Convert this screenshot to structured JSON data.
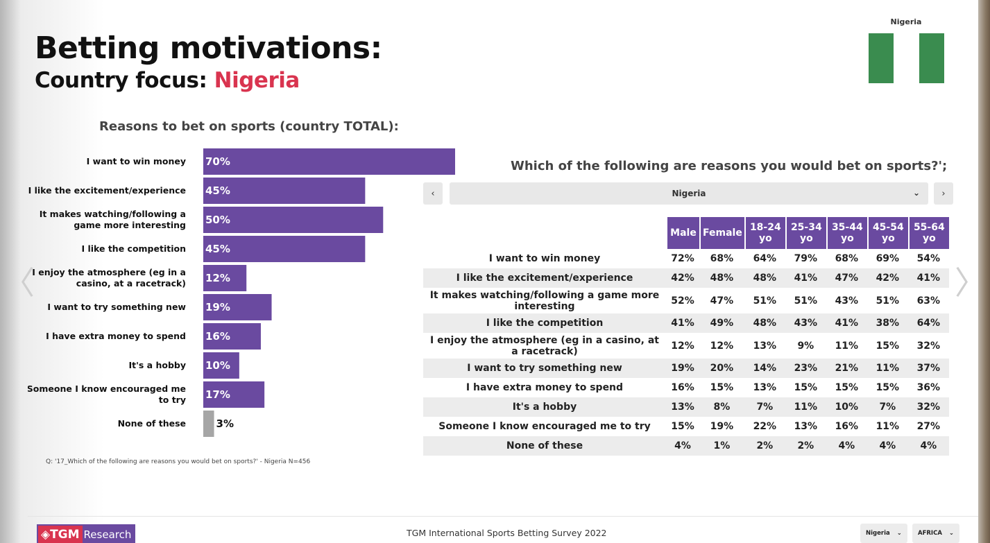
{
  "header": {
    "title": "Betting motivations:",
    "subtitle_prefix": "Country focus: ",
    "subtitle_country": "Nigeria",
    "flag_label": "Nigeria"
  },
  "colors": {
    "purple": "#6a4aa0",
    "gray_bar": "#a6a6a6",
    "accent": "#d9344f",
    "flag_green": "#3a8c4f"
  },
  "chart_data": [
    {
      "type": "bar",
      "orientation": "horizontal",
      "title": "Reasons to bet on sports (country TOTAL):",
      "categories": [
        [
          "I want to win money"
        ],
        [
          "I like the excitement/experience"
        ],
        [
          "It makes watching/following a",
          "game more interesting"
        ],
        [
          "I like the competition"
        ],
        [
          "I enjoy the atmosphere (eg in a",
          "casino, at a racetrack)"
        ],
        [
          "I want to try something new"
        ],
        [
          "I have extra money to spend"
        ],
        [
          "It's a hobby"
        ],
        [
          "Someone I know encouraged me",
          "to try"
        ],
        [
          "None of these"
        ]
      ],
      "values": [
        70,
        45,
        50,
        45,
        12,
        19,
        16,
        10,
        17,
        3
      ],
      "value_labels": [
        "70%",
        "45%",
        "50%",
        "45%",
        "12%",
        "19%",
        "16%",
        "10%",
        "17%",
        "3%"
      ],
      "bar_colors": [
        "#6a4aa0",
        "#6a4aa0",
        "#6a4aa0",
        "#6a4aa0",
        "#6a4aa0",
        "#6a4aa0",
        "#6a4aa0",
        "#6a4aa0",
        "#6a4aa0",
        "#a6a6a6"
      ],
      "xlim": [
        0,
        70
      ],
      "grid": false
    },
    {
      "type": "table",
      "title": "Which of the following are reasons you would bet on sports?';",
      "columns": [
        "Male",
        "Female",
        "18-24 yo",
        "25-34 yo",
        "35-44 yo",
        "45-54 yo",
        "55-64 yo"
      ],
      "rows": [
        {
          "label": "I want to win money",
          "values": [
            "72%",
            "68%",
            "64%",
            "79%",
            "68%",
            "69%",
            "54%"
          ]
        },
        {
          "label": "I like the excitement/experience",
          "values": [
            "42%",
            "48%",
            "48%",
            "41%",
            "47%",
            "42%",
            "41%"
          ]
        },
        {
          "label": "It makes watching/following a game more interesting",
          "values": [
            "52%",
            "47%",
            "51%",
            "51%",
            "43%",
            "51%",
            "63%"
          ]
        },
        {
          "label": "I like the competition",
          "values": [
            "41%",
            "49%",
            "48%",
            "43%",
            "41%",
            "38%",
            "64%"
          ]
        },
        {
          "label": "I enjoy the atmosphere (eg in a casino, at a racetrack)",
          "values": [
            "12%",
            "12%",
            "13%",
            "9%",
            "11%",
            "15%",
            "32%"
          ]
        },
        {
          "label": "I want to try something new",
          "values": [
            "19%",
            "20%",
            "14%",
            "23%",
            "21%",
            "11%",
            "37%"
          ]
        },
        {
          "label": "I have extra money to spend",
          "values": [
            "16%",
            "15%",
            "13%",
            "15%",
            "15%",
            "15%",
            "36%"
          ]
        },
        {
          "label": "It's a hobby",
          "values": [
            "13%",
            "8%",
            "7%",
            "11%",
            "10%",
            "7%",
            "32%"
          ]
        },
        {
          "label": "Someone I know encouraged me to try",
          "values": [
            "15%",
            "19%",
            "22%",
            "13%",
            "16%",
            "11%",
            "27%"
          ]
        },
        {
          "label": "None of these",
          "values": [
            "4%",
            "1%",
            "2%",
            "2%",
            "4%",
            "4%",
            "4%"
          ]
        }
      ]
    }
  ],
  "footnote": "Q: '17_Which of the following are reasons you would bet on sports?' - Nigeria N=456",
  "selector": {
    "value": "Nigeria",
    "prev_icon": "‹",
    "next_icon": "›",
    "chevron": "⌄"
  },
  "footer": {
    "logo_mark": "◈TGM",
    "logo_text": "Research",
    "survey_name": "TGM International Sports Betting Survey 2022",
    "country_pill": "Nigeria",
    "region_pill": "AFRICA",
    "pill_chevron": "⌄"
  },
  "nav": {
    "left_arrow": "〈",
    "right_arrow": "〉"
  }
}
